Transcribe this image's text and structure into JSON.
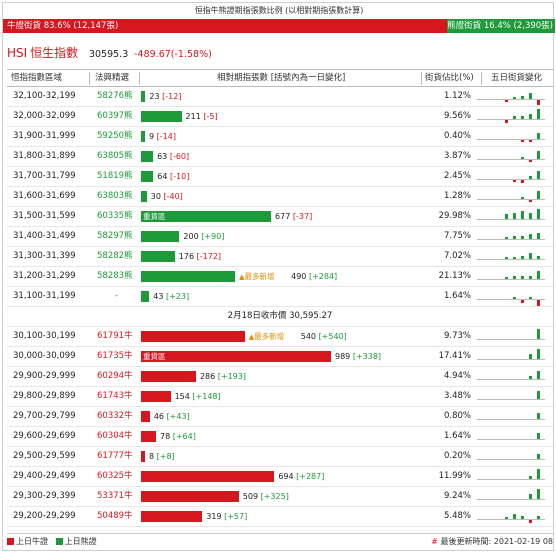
{
  "title": "恒指牛熊證期指張數比例 (以相對期指張數計算)",
  "ratio": {
    "bull_label": "牛證街貨 83.6% (12,147張)",
    "bull_fraction": 0.836,
    "bear_label": "熊證街貨 16.4% (2,390張)"
  },
  "index": {
    "code": "HSI",
    "name": "恒生指數",
    "value": "30595.3",
    "change": "-489.67(-1.58%)"
  },
  "headers": {
    "range": "恒指指數區域",
    "top": "法興精選",
    "bar": "相對期指張數 [括號內為一日變化]",
    "pct": "街貨佔比(%)",
    "five": "五日街貨變化"
  },
  "bar_scale_max": 989,
  "bear_rows": [
    {
      "range": "32,100-32,199",
      "top": "58276熊",
      "value": 23,
      "value_text": "23",
      "change": "[-12]",
      "change_sign": "neg",
      "pct": "1.12%",
      "five": [
        -1,
        1,
        2,
        4,
        -3
      ]
    },
    {
      "range": "32,000-32,099",
      "top": "60397熊",
      "value": 211,
      "value_text": "211",
      "change": "[-5]",
      "change_sign": "neg",
      "pct": "9.56%",
      "five": [
        -2,
        2,
        2,
        3,
        6
      ]
    },
    {
      "range": "31,900-31,999",
      "top": "59250熊",
      "value": 9,
      "value_text": "9",
      "change": "[-14]",
      "change_sign": "neg",
      "pct": "0.40%",
      "five": [
        0,
        0,
        -1,
        -1,
        4
      ]
    },
    {
      "range": "31,800-31,899",
      "top": "63805熊",
      "value": 63,
      "value_text": "63",
      "change": "[-60]",
      "change_sign": "neg",
      "pct": "3.87%",
      "five": [
        0,
        0,
        1,
        -1,
        5
      ]
    },
    {
      "range": "31,700-31,799",
      "top": "51819熊",
      "value": 64,
      "value_text": "64",
      "change": "[-10]",
      "change_sign": "neg",
      "pct": "2.45%",
      "five": [
        0,
        -1,
        -2,
        2,
        5
      ]
    },
    {
      "range": "31,600-31,699",
      "top": "63803熊",
      "value": 30,
      "value_text": "30",
      "change": "[-40]",
      "change_sign": "neg",
      "pct": "1.28%",
      "five": [
        0,
        0,
        1,
        -1,
        5
      ]
    },
    {
      "range": "31,500-31,599",
      "top": "60335熊",
      "value": 677,
      "value_text": "677",
      "change": "[-37]",
      "change_sign": "neg",
      "pct": "29.98%",
      "tag": "重貨區",
      "five": [
        3,
        4,
        5,
        4,
        6
      ]
    },
    {
      "range": "31,400-31,499",
      "top": "58297熊",
      "value": 200,
      "value_text": "200",
      "change": "[+90]",
      "change_sign": "pos",
      "pct": "7.75%",
      "five": [
        1,
        2,
        2,
        3,
        4
      ]
    },
    {
      "range": "31,300-31,399",
      "top": "58282熊",
      "value": 176,
      "value_text": "176",
      "change": "[-172]",
      "change_sign": "neg",
      "pct": "7.02%",
      "five": [
        1,
        1,
        2,
        4,
        2
      ]
    },
    {
      "range": "31,200-31,299",
      "top": "58283熊",
      "value": 490,
      "value_text": "490",
      "change": "[+284]",
      "change_sign": "pos",
      "pct": "21.13%",
      "note": "最多新增",
      "five": [
        1,
        2,
        2,
        2,
        5
      ]
    },
    {
      "range": "31,100-31,199",
      "top": "-",
      "value": 43,
      "value_text": "43",
      "change": "[+23]",
      "change_sign": "pos",
      "pct": "1.64%",
      "five": [
        0,
        1,
        -2,
        1,
        -4
      ]
    }
  ],
  "close_label": "2月18日收市價 30,595.27",
  "bull_rows": [
    {
      "range": "30,100-30,199",
      "top": "61791牛",
      "value": 540,
      "value_text": "540",
      "change": "[+540]",
      "change_sign": "pos",
      "pct": "9.73%",
      "note": "最多新增",
      "five": [
        0,
        0,
        0,
        0,
        6
      ]
    },
    {
      "range": "30,000-30,099",
      "top": "61735牛",
      "value": 989,
      "value_text": "989",
      "change": "[+338]",
      "change_sign": "pos",
      "pct": "17.41%",
      "tag": "重貨區",
      "five": [
        0,
        0,
        0,
        3,
        6
      ]
    },
    {
      "range": "29,900-29,999",
      "top": "60294牛",
      "value": 286,
      "value_text": "286",
      "change": "[+193]",
      "change_sign": "pos",
      "pct": "4.94%",
      "five": [
        0,
        0,
        0,
        2,
        5
      ]
    },
    {
      "range": "29,800-29,899",
      "top": "61743牛",
      "value": 154,
      "value_text": "154",
      "change": "[+148]",
      "change_sign": "pos",
      "pct": "3.48%",
      "five": [
        0,
        0,
        0,
        0,
        5
      ]
    },
    {
      "range": "29,700-29,799",
      "top": "60332牛",
      "value": 46,
      "value_text": "46",
      "change": "[+43]",
      "change_sign": "pos",
      "pct": "0.80%",
      "five": [
        0,
        0,
        0,
        0,
        4
      ]
    },
    {
      "range": "29,600-29,699",
      "top": "60304牛",
      "value": 78,
      "value_text": "78",
      "change": "[+64]",
      "change_sign": "pos",
      "pct": "1.64%",
      "five": [
        0,
        0,
        0,
        0,
        4
      ]
    },
    {
      "range": "29,500-29,599",
      "top": "61777牛",
      "value": 8,
      "value_text": "8",
      "change": "[+8]",
      "change_sign": "pos",
      "pct": "0.20%",
      "five": [
        0,
        0,
        0,
        0,
        3
      ]
    },
    {
      "range": "29,400-29,499",
      "top": "60325牛",
      "value": 694,
      "value_text": "694",
      "change": "[+287]",
      "change_sign": "pos",
      "pct": "11.99%",
      "five": [
        0,
        0,
        0,
        2,
        6
      ]
    },
    {
      "range": "29,300-29,399",
      "top": "53371牛",
      "value": 509,
      "value_text": "509",
      "change": "[+325]",
      "change_sign": "pos",
      "pct": "9.24%",
      "five": [
        0,
        0,
        0,
        3,
        6
      ]
    },
    {
      "range": "29,200-29,299",
      "top": "50489牛",
      "value": 319,
      "value_text": "319",
      "change": "[+57]",
      "change_sign": "pos",
      "pct": "5.48%",
      "five": [
        1,
        3,
        2,
        -2,
        2
      ]
    }
  ],
  "legend": {
    "bull": "上日牛證",
    "bear": "上日熊證"
  },
  "updated": "最後更新時間: 2021-02-19 08",
  "colors": {
    "bull": "#d6171f",
    "bear": "#1f9a3b",
    "note": "#e08a00"
  }
}
